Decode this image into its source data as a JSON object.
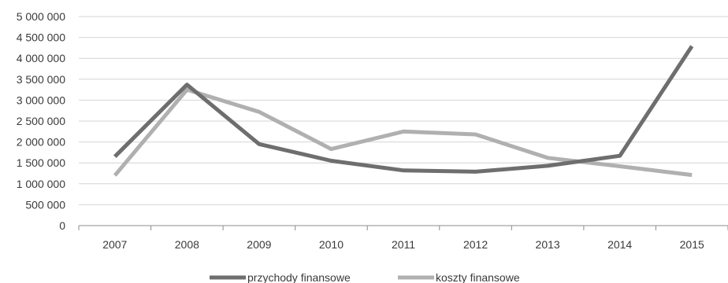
{
  "chart_data": {
    "type": "line",
    "title": "",
    "xlabel": "",
    "ylabel": "",
    "categories": [
      "2007",
      "2008",
      "2009",
      "2010",
      "2011",
      "2012",
      "2013",
      "2014",
      "2015"
    ],
    "ylim": [
      0,
      5000000
    ],
    "yticks": [
      0,
      500000,
      1000000,
      1500000,
      2000000,
      2500000,
      3000000,
      3500000,
      4000000,
      4500000,
      5000000
    ],
    "ytick_labels": [
      "0",
      "500 000",
      "1 000 000",
      "1 500 000",
      "2 000 000",
      "2 500 000",
      "3 000 000",
      "3 500 000",
      "4 000 000",
      "4 500 000",
      "5 000 000"
    ],
    "grid": true,
    "legend_position": "bottom",
    "series": [
      {
        "name": "przychody finansowe",
        "color": "#6e6e6e",
        "values": [
          1650000,
          3370000,
          1950000,
          1550000,
          1320000,
          1290000,
          1430000,
          1670000,
          4290000
        ]
      },
      {
        "name": "koszty finansowe",
        "color": "#b0b0b0",
        "values": [
          1200000,
          3250000,
          2720000,
          1830000,
          2250000,
          2180000,
          1620000,
          1420000,
          1210000
        ]
      }
    ]
  }
}
